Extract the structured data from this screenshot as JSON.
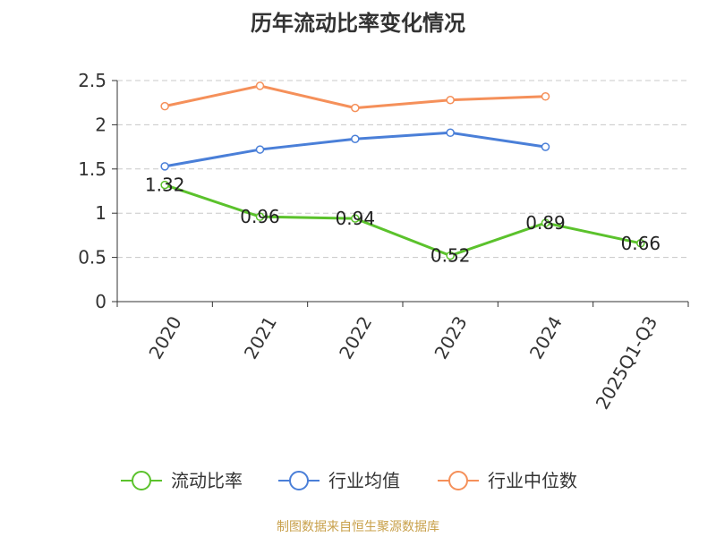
{
  "chart_data": {
    "type": "line",
    "title": "历年流动比率变化情况",
    "categories": [
      "2020",
      "2021",
      "2022",
      "2023",
      "2024",
      "2025Q1-Q3"
    ],
    "ylim": [
      0,
      2.5
    ],
    "yticks": [
      "0",
      "0.5",
      "1",
      "1.5",
      "2",
      "2.5"
    ],
    "grid": true,
    "legend_position": "bottom",
    "series": [
      {
        "name": "流动比率",
        "color": "#5bc22c",
        "values": [
          1.32,
          0.96,
          0.94,
          0.52,
          0.89,
          0.66
        ],
        "labels": [
          "1.32",
          "0.96",
          "0.94",
          "0.52",
          "0.89",
          "0.66"
        ]
      },
      {
        "name": "行业均值",
        "color": "#4a7fd8",
        "values": [
          1.53,
          1.72,
          1.84,
          1.91,
          1.75,
          null
        ]
      },
      {
        "name": "行业中位数",
        "color": "#f5905a",
        "values": [
          2.21,
          2.44,
          2.19,
          2.28,
          2.32,
          null
        ]
      }
    ]
  },
  "source": "制图数据来自恒生聚源数据库"
}
